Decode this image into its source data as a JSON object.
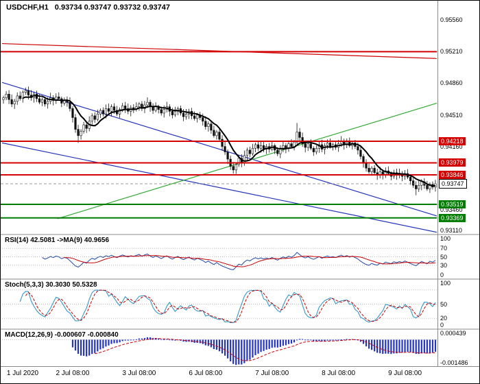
{
  "header": {
    "symbol": "USDCHF,H1",
    "ohlc": "0.93734 0.93747 0.93732 0.93747"
  },
  "colors": {
    "up": "#ffffff",
    "down": "#111111",
    "wick": "#111111",
    "ma": "#000000",
    "resistance": "#d40000",
    "support": "#007c00",
    "trend_red": "#cc0000",
    "trend_blue": "#2233bb",
    "trend_green": "#33aa33",
    "rsi": "#3355aa",
    "rsi_ma": "#cc0000",
    "stoch_k": "#3399cc",
    "stoch_d": "#cc0000",
    "macd_hist": "#2233cc",
    "macd_signal": "#cc0000",
    "separator": "#888888",
    "current_line": "#999999",
    "dotted_level": "#bbbbbb"
  },
  "chart_data": [
    {
      "type": "candlestick",
      "symbol": "USDCHF",
      "timeframe": "H1",
      "ylim": [
        0.932,
        0.9576
      ],
      "yticks": [
        "0.95560",
        "0.95210",
        "0.94860",
        "0.94510",
        "0.94160",
        "0.93460",
        "0.93110"
      ],
      "x_axis_labels": [
        {
          "text": "1 Jul 2020",
          "bar": 1
        },
        {
          "text": "2 Jul 08:00",
          "bar": 25
        },
        {
          "text": "3 Jul 08:00",
          "bar": 49
        },
        {
          "text": "6 Jul 08:00",
          "bar": 73
        },
        {
          "text": "7 Jul 08:00",
          "bar": 97
        },
        {
          "text": "8 Jul 08:00",
          "bar": 121
        },
        {
          "text": "9 Jul 08:00",
          "bar": 145
        }
      ],
      "first_open": 0.9468,
      "closes": [
        0.947,
        0.9474,
        0.9468,
        0.9463,
        0.9466,
        0.9472,
        0.9469,
        0.9476,
        0.9478,
        0.9473,
        0.947,
        0.9474,
        0.9469,
        0.9465,
        0.9468,
        0.9463,
        0.9466,
        0.947,
        0.9467,
        0.9471,
        0.9469,
        0.9464,
        0.9467,
        0.9465,
        0.9458,
        0.9448,
        0.9435,
        0.9428,
        0.9433,
        0.944,
        0.9436,
        0.9444,
        0.945,
        0.9446,
        0.9452,
        0.9456,
        0.9452,
        0.9458,
        0.9455,
        0.946,
        0.9456,
        0.9452,
        0.9457,
        0.9461,
        0.9458,
        0.9455,
        0.9459,
        0.9457,
        0.946,
        0.9463,
        0.9458,
        0.9462,
        0.9465,
        0.946,
        0.9456,
        0.946,
        0.9457,
        0.9453,
        0.9457,
        0.946,
        0.9455,
        0.9451,
        0.9455,
        0.9458,
        0.9453,
        0.9449,
        0.9452,
        0.9455,
        0.945,
        0.9447,
        0.9451,
        0.9448,
        0.9444,
        0.9438,
        0.9441,
        0.9434,
        0.9428,
        0.9432,
        0.9424,
        0.9416,
        0.941,
        0.9402,
        0.9394,
        0.939,
        0.9396,
        0.9403,
        0.9398,
        0.9406,
        0.9412,
        0.9408,
        0.9414,
        0.9418,
        0.9414,
        0.9417,
        0.9413,
        0.9416,
        0.9413,
        0.9417,
        0.9412,
        0.9408,
        0.9413,
        0.9417,
        0.9414,
        0.9419,
        0.9416,
        0.9421,
        0.9432,
        0.9426,
        0.9419,
        0.9415,
        0.9419,
        0.9414,
        0.941,
        0.9414,
        0.9418,
        0.9413,
        0.9417,
        0.942,
        0.9416,
        0.9418,
        0.9415,
        0.9419,
        0.9422,
        0.9418,
        0.9421,
        0.9417,
        0.942,
        0.9416,
        0.9412,
        0.9405,
        0.9398,
        0.9392,
        0.9388,
        0.9392,
        0.9387,
        0.9384,
        0.9388,
        0.9385,
        0.9389,
        0.9386,
        0.9383,
        0.9387,
        0.9384,
        0.9386,
        0.9383,
        0.9386,
        0.9382,
        0.9378,
        0.9373,
        0.9369,
        0.9373,
        0.9377,
        0.9373,
        0.9369,
        0.9374,
        0.9371,
        0.93747
      ],
      "wick_overrides": {
        "27": {
          "low": 0.942
        },
        "83": {
          "low": 0.9386
        },
        "106": {
          "high": 0.9442
        },
        "149": {
          "low": 0.9362
        }
      },
      "ma_period": 8,
      "levels": [
        {
          "price": 0.9521,
          "kind": "resistance",
          "badge": null
        },
        {
          "price": 0.94218,
          "kind": "resistance",
          "badge": "0.94218"
        },
        {
          "price": 0.93979,
          "kind": "resistance",
          "badge": "0.93979"
        },
        {
          "price": 0.93846,
          "kind": "resistance",
          "badge": "0.93846"
        },
        {
          "price": 0.93519,
          "kind": "support",
          "badge": "0.93519"
        },
        {
          "price": 0.93369,
          "kind": "support",
          "badge": "0.93369"
        }
      ],
      "trendlines": [
        {
          "color_key": "trend_red",
          "from_bar": 0,
          "from_price": 0.953,
          "to_bar": 157,
          "to_price": 0.95135
        },
        {
          "color_key": "trend_blue",
          "from_bar": 0,
          "from_price": 0.9487,
          "to_bar": 157,
          "to_price": 0.9339
        },
        {
          "color_key": "trend_blue",
          "from_bar": 0,
          "from_price": 0.942,
          "to_bar": 157,
          "to_price": 0.9321
        },
        {
          "color_key": "trend_green",
          "from_bar": 20,
          "from_price": 0.9336,
          "to_bar": 157,
          "to_price": 0.9464
        }
      ],
      "current_price": 0.93747,
      "current_badge": "0.93747"
    },
    {
      "type": "line",
      "indicator": "RSI",
      "label": "RSI(14) 42.5081  ->MA(9) 40.9656",
      "params": {
        "period": 14,
        "ma": 9
      },
      "ylim": [
        0,
        100
      ],
      "yticks": [
        "100",
        "70",
        "50",
        "30",
        "0"
      ],
      "dotted_levels": [
        70,
        50,
        30
      ],
      "last_values": {
        "rsi": 42.5081,
        "ma": 40.9656
      }
    },
    {
      "type": "line",
      "indicator": "Stochastic",
      "label": "Stoch(5,3,3) 30.3030 50.5328",
      "params": {
        "k": 5,
        "d": 3,
        "slowing": 3
      },
      "ylim": [
        0,
        100
      ],
      "yticks": [
        "100",
        "50",
        "20",
        "0"
      ],
      "dotted_levels": [
        80,
        50,
        20
      ],
      "last_values": {
        "k": 30.303,
        "d": 50.5328
      }
    },
    {
      "type": "histogram",
      "indicator": "MACD",
      "label": "MACD(12,26,9) -0.000607 -0.000840",
      "params": {
        "fast": 12,
        "slow": 26,
        "signal": 9
      },
      "ylim": [
        -0.00155,
        0.00055
      ],
      "yticks": [
        {
          "text": "0.000439",
          "value": 0.000439
        },
        {
          "text": "-0.001486",
          "value": -0.001486
        }
      ],
      "last_values": {
        "macd": -0.000607,
        "signal": -0.00084
      }
    }
  ]
}
